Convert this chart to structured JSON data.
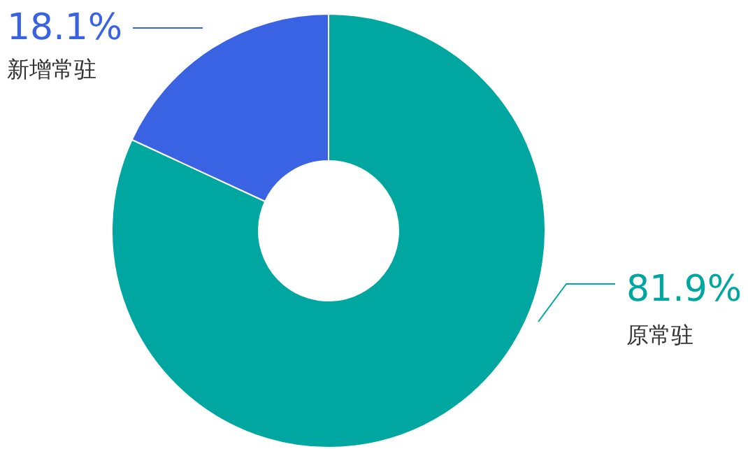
{
  "chart_data": {
    "type": "donut",
    "categories": [
      "原常驻",
      "新增常驻"
    ],
    "values": [
      81.9,
      18.1
    ],
    "colors": [
      "#00a6a0",
      "#3a63e3"
    ],
    "value_labels": [
      "81.9%",
      "18.1%"
    ]
  }
}
